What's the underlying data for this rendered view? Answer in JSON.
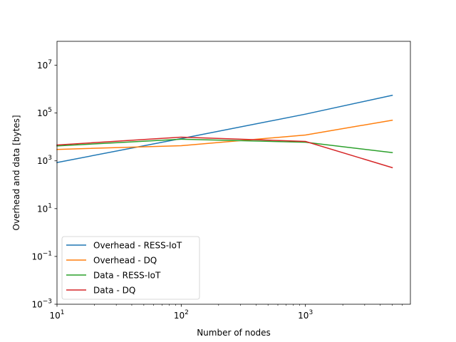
{
  "chart_data": {
    "type": "line",
    "title": "",
    "xlabel": "Number of nodes",
    "ylabel": "Overhead and data [bytes]",
    "xscale": "log",
    "yscale": "log",
    "xlim": [
      10,
      7000
    ],
    "ylim": [
      0.001,
      100000000
    ],
    "grid": false,
    "legend_position": "lower-left",
    "x_ticks": [
      {
        "value": 10,
        "base": "10",
        "exp": "1"
      },
      {
        "value": 100,
        "base": "10",
        "exp": "2"
      },
      {
        "value": 1000,
        "base": "10",
        "exp": "3"
      }
    ],
    "y_ticks": [
      {
        "value": 0.001,
        "base": "10",
        "exp": "−3"
      },
      {
        "value": 0.1,
        "base": "10",
        "exp": "−1"
      },
      {
        "value": 10,
        "base": "10",
        "exp": "1"
      },
      {
        "value": 1000,
        "base": "10",
        "exp": "3"
      },
      {
        "value": 100000,
        "base": "10",
        "exp": "5"
      },
      {
        "value": 10000000,
        "base": "10",
        "exp": "7"
      }
    ],
    "x": [
      10,
      100,
      1000,
      5000
    ],
    "series": [
      {
        "name": "Overhead - RESS-IoT",
        "color": "#1f77b4",
        "values": [
          850,
          8500,
          90000,
          550000
        ]
      },
      {
        "name": "Overhead - DQ",
        "color": "#ff7f0e",
        "values": [
          3000,
          4300,
          12000,
          50000
        ]
      },
      {
        "name": "Data - RESS-IoT",
        "color": "#2ca02c",
        "values": [
          4200,
          8000,
          6000,
          2200
        ]
      },
      {
        "name": "Data - DQ",
        "color": "#d62728",
        "values": [
          4600,
          9800,
          6500,
          520
        ]
      }
    ]
  }
}
